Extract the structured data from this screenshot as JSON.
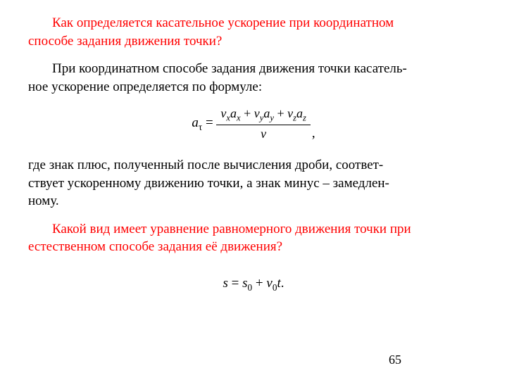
{
  "q1_line1": "Как определяется касательное ускорение при координатном",
  "q1_line2": "способе задания движения точки?",
  "a1_line1": "При координатном способе задания движения точки касатель-",
  "a1_line2": "ное ускорение определяется по формуле:",
  "formula1": {
    "lhs_var": "a",
    "lhs_sub": "τ",
    "num_terms": [
      {
        "v": "v",
        "vs": "x",
        "a": "a",
        "as": "x"
      },
      {
        "v": "v",
        "vs": "y",
        "a": "a",
        "as": "y"
      },
      {
        "v": "v",
        "vs": "z",
        "a": "a",
        "as": "z"
      }
    ],
    "den": "v"
  },
  "a2_line1": "где знак плюс, полученный после вычисления дроби, соответ-",
  "a2_line2": "ствует ускоренному движению точки, а знак минус – замедлен-",
  "a2_line3": "ному.",
  "q2_line1": "Какой вид имеет уравнение равномерного движения точки при",
  "q2_line2": "естественном способе задания её движения?",
  "formula2": {
    "s": "s",
    "s0v": "s",
    "s0s": "0",
    "vv": "v",
    "vs": "0",
    "t": "t"
  },
  "page_number": "65",
  "colors": {
    "question": "#ff0000",
    "text": "#000000",
    "background": "#ffffff"
  },
  "fonts": {
    "family": "Times New Roman",
    "body_size_pt": 14
  }
}
